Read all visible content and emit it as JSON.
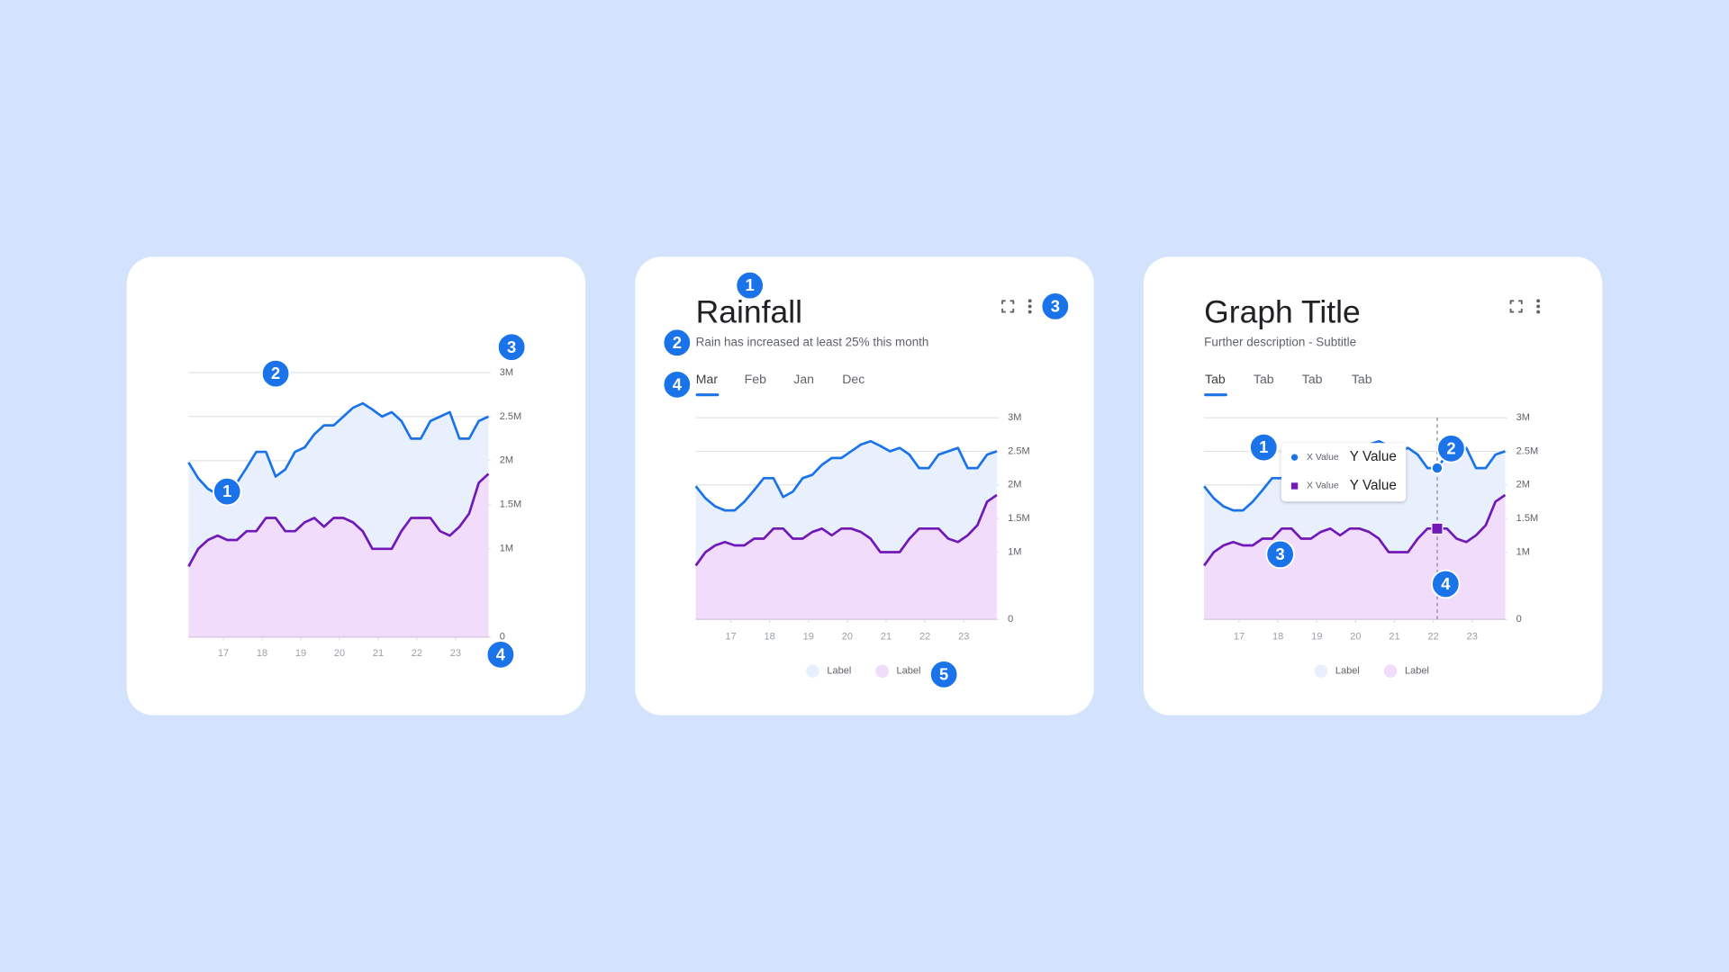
{
  "chart_data": [
    {
      "type": "area",
      "x": [
        16.1,
        16.35,
        16.6,
        16.85,
        17.1,
        17.35,
        17.6,
        17.85,
        18.1,
        18.35,
        18.6,
        18.85,
        19.1,
        19.35,
        19.6,
        19.85,
        20.1,
        20.35,
        20.6,
        20.85,
        21.1,
        21.35,
        21.6,
        21.85,
        22.1,
        22.35,
        22.6,
        22.85,
        23.1,
        23.35,
        23.6,
        23.85
      ],
      "xlim": [
        16.1,
        23.85
      ],
      "xticks": [
        17,
        18,
        19,
        20,
        21,
        22,
        23
      ],
      "ylim": [
        0,
        3000000
      ],
      "yticks": [
        0,
        {
          "value": 1000000,
          "label": "1M"
        },
        {
          "value": 1500000,
          "label": "1.5M"
        },
        {
          "value": 2000000,
          "label": "2M"
        },
        {
          "value": 2500000,
          "label": "2.5M"
        },
        {
          "value": 3000000,
          "label": "3M"
        }
      ],
      "grid": true,
      "series": [
        {
          "color": "#1a73e8",
          "fill": "#e8f0fe",
          "values": [
            1980000,
            1800000,
            1680000,
            1620000,
            1620000,
            1750000,
            1920000,
            2100000,
            2100000,
            1820000,
            1900000,
            2100000,
            2150000,
            2300000,
            2400000,
            2400000,
            2500000,
            2600000,
            2650000,
            2580000,
            2500000,
            2550000,
            2450000,
            2250000,
            2250000,
            2450000,
            2500000,
            2550000,
            2250000,
            2250000,
            2450000,
            2500000
          ]
        },
        {
          "color": "#7119b8",
          "fill": "#f1dcfb",
          "values": [
            800000,
            1000000,
            1100000,
            1150000,
            1100000,
            1100000,
            1200000,
            1200000,
            1350000,
            1350000,
            1200000,
            1200000,
            1300000,
            1350000,
            1250000,
            1350000,
            1350000,
            1300000,
            1200000,
            1000000,
            1000000,
            1000000,
            1200000,
            1350000,
            1350000,
            1350000,
            1200000,
            1150000,
            1250000,
            1400000,
            1750000,
            1850000
          ]
        }
      ],
      "annotations": [
        "1",
        "2",
        "3",
        "4"
      ]
    },
    {
      "type": "area",
      "title": "Rainfall",
      "subtitle": "Rain has increased at least 25% this month",
      "tabs": [
        "Mar",
        "Feb",
        "Jan",
        "Dec"
      ],
      "x": [
        16.1,
        16.35,
        16.6,
        16.85,
        17.1,
        17.35,
        17.6,
        17.85,
        18.1,
        18.35,
        18.6,
        18.85,
        19.1,
        19.35,
        19.6,
        19.85,
        20.1,
        20.35,
        20.6,
        20.85,
        21.1,
        21.35,
        21.6,
        21.85,
        22.1,
        22.35,
        22.6,
        22.85,
        23.1,
        23.35,
        23.6,
        23.85
      ],
      "xlim": [
        16.1,
        23.85
      ],
      "xticks": [
        17,
        18,
        19,
        20,
        21,
        22,
        23
      ],
      "ylim": [
        0,
        3000000
      ],
      "yticks": [
        0,
        {
          "value": 1000000,
          "label": "1M"
        },
        {
          "value": 1500000,
          "label": "1.5M"
        },
        {
          "value": 2000000,
          "label": "2M"
        },
        {
          "value": 2500000,
          "label": "2.5M"
        },
        {
          "value": 3000000,
          "label": "3M"
        }
      ],
      "grid": true,
      "series": [
        {
          "name": "Label",
          "color": "#1a73e8",
          "fill": "#e8f0fe",
          "values": [
            1980000,
            1800000,
            1680000,
            1620000,
            1620000,
            1750000,
            1920000,
            2100000,
            2100000,
            1820000,
            1900000,
            2100000,
            2150000,
            2300000,
            2400000,
            2400000,
            2500000,
            2600000,
            2650000,
            2580000,
            2500000,
            2550000,
            2450000,
            2250000,
            2250000,
            2450000,
            2500000,
            2550000,
            2250000,
            2250000,
            2450000,
            2500000
          ]
        },
        {
          "name": "Label",
          "color": "#7119b8",
          "fill": "#f1dcfb",
          "values": [
            800000,
            1000000,
            1100000,
            1150000,
            1100000,
            1100000,
            1200000,
            1200000,
            1350000,
            1350000,
            1200000,
            1200000,
            1300000,
            1350000,
            1250000,
            1350000,
            1350000,
            1300000,
            1200000,
            1000000,
            1000000,
            1000000,
            1200000,
            1350000,
            1350000,
            1350000,
            1200000,
            1150000,
            1250000,
            1400000,
            1750000,
            1850000
          ]
        }
      ],
      "annotations": [
        "1",
        "2",
        "3",
        "4",
        "5"
      ]
    },
    {
      "type": "area",
      "title": "Graph Title",
      "subtitle": "Further description - Subtitle",
      "tabs": [
        "Tab",
        "Tab",
        "Tab",
        "Tab"
      ],
      "x": [
        16.1,
        16.35,
        16.6,
        16.85,
        17.1,
        17.35,
        17.6,
        17.85,
        18.1,
        18.35,
        18.6,
        18.85,
        19.1,
        19.35,
        19.6,
        19.85,
        20.1,
        20.35,
        20.6,
        20.85,
        21.1,
        21.35,
        21.6,
        21.85,
        22.1,
        22.35,
        22.6,
        22.85,
        23.1,
        23.35,
        23.6,
        23.85
      ],
      "xlim": [
        16.1,
        23.85
      ],
      "xticks": [
        17,
        18,
        19,
        20,
        21,
        22,
        23
      ],
      "ylim": [
        0,
        3000000
      ],
      "yticks": [
        0,
        {
          "value": 1000000,
          "label": "1M"
        },
        {
          "value": 1500000,
          "label": "1.5M"
        },
        {
          "value": 2000000,
          "label": "2M"
        },
        {
          "value": 2500000,
          "label": "2.5M"
        },
        {
          "value": 3000000,
          "label": "3M"
        }
      ],
      "grid": true,
      "series": [
        {
          "name": "Label",
          "color": "#1a73e8",
          "fill": "#e8f0fe",
          "values": [
            1980000,
            1800000,
            1680000,
            1620000,
            1620000,
            1750000,
            1920000,
            2100000,
            2100000,
            1820000,
            1900000,
            2100000,
            2150000,
            2300000,
            2400000,
            2400000,
            2500000,
            2600000,
            2650000,
            2580000,
            2500000,
            2550000,
            2450000,
            2250000,
            2250000,
            2450000,
            2500000,
            2550000,
            2250000,
            2250000,
            2450000,
            2500000
          ]
        },
        {
          "name": "Label",
          "color": "#7119b8",
          "fill": "#f1dcfb",
          "values": [
            800000,
            1000000,
            1100000,
            1150000,
            1100000,
            1100000,
            1200000,
            1200000,
            1350000,
            1350000,
            1200000,
            1200000,
            1300000,
            1350000,
            1250000,
            1350000,
            1350000,
            1300000,
            1200000,
            1000000,
            1000000,
            1000000,
            1200000,
            1350000,
            1350000,
            1350000,
            1200000,
            1150000,
            1250000,
            1400000,
            1750000,
            1850000
          ]
        }
      ],
      "tooltip": [
        {
          "x": "X Value",
          "y": "Y Value"
        },
        {
          "x": "X Value",
          "y": "Y Value"
        }
      ],
      "annotations": [
        "1",
        "2",
        "3",
        "4"
      ]
    }
  ]
}
